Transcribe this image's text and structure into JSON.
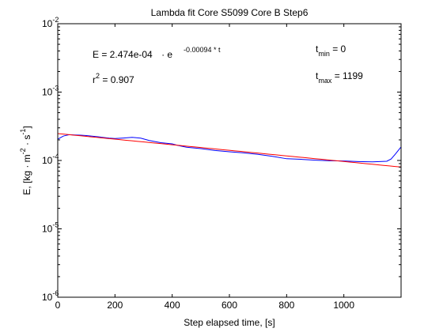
{
  "chart_data": {
    "type": "line",
    "title": "Lambda fit  Core S5099 Core B  Step6",
    "xlabel": "Step elapsed time, [s]",
    "ylabel": {
      "prefix": "E, [kg · m",
      "exp1": "-2",
      "mid": " · s",
      "exp2": "-1",
      "suffix": "]"
    },
    "xlim": [
      0,
      1200
    ],
    "ylim": [
      1e-06,
      0.01
    ],
    "yscale": "log",
    "grid": false,
    "x_ticks": [
      0,
      200,
      400,
      600,
      800,
      1000
    ],
    "y_ticks": [
      {
        "value": 1e-06,
        "base": "10",
        "exp": "-6"
      },
      {
        "value": 1e-05,
        "base": "10",
        "exp": "-5"
      },
      {
        "value": 0.0001,
        "base": "10",
        "exp": "-4"
      },
      {
        "value": 0.001,
        "base": "10",
        "exp": "-3"
      },
      {
        "value": 0.01,
        "base": "10",
        "exp": "-2"
      }
    ],
    "annotations": {
      "equation": {
        "lhs": "E = 2.474e-04",
        "dot": "· e",
        "exponent": "-0.00094 * t"
      },
      "r2": {
        "base": "r",
        "exp": "2",
        "rest": " = 0.907"
      },
      "tmin": {
        "base": "t",
        "sub": "min",
        "rest": " = 0"
      },
      "tmax": {
        "base": "t",
        "sub": "max",
        "rest": " = 1199"
      }
    },
    "series": [
      {
        "color": "#0000ff",
        "x": [
          0,
          20,
          40,
          60,
          80,
          100,
          140,
          180,
          200,
          230,
          260,
          290,
          320,
          360,
          400,
          420,
          450,
          500,
          550,
          600,
          650,
          700,
          750,
          800,
          850,
          900,
          950,
          1000,
          1050,
          1100,
          1150,
          1165,
          1180,
          1199
        ],
        "y": [
          0.000205,
          0.000228,
          0.000238,
          0.000236,
          0.000234,
          0.000231,
          0.000222,
          0.000212,
          0.000209,
          0.000213,
          0.000218,
          0.000212,
          0.000196,
          0.000182,
          0.000175,
          0.000166,
          0.000156,
          0.000149,
          0.00014,
          0.000134,
          0.000129,
          0.000123,
          0.000115,
          0.000106,
          0.000104,
          0.000101,
          9.9e-05,
          9.85e-05,
          9.65e-05,
          9.55e-05,
          9.75e-05,
          0.000105,
          0.000124,
          0.000156
        ]
      },
      {
        "color": "#ff0000",
        "type": "exponential-fit",
        "a": 0.0002474,
        "k": -0.00094,
        "x": [
          0,
          1199
        ]
      }
    ]
  }
}
